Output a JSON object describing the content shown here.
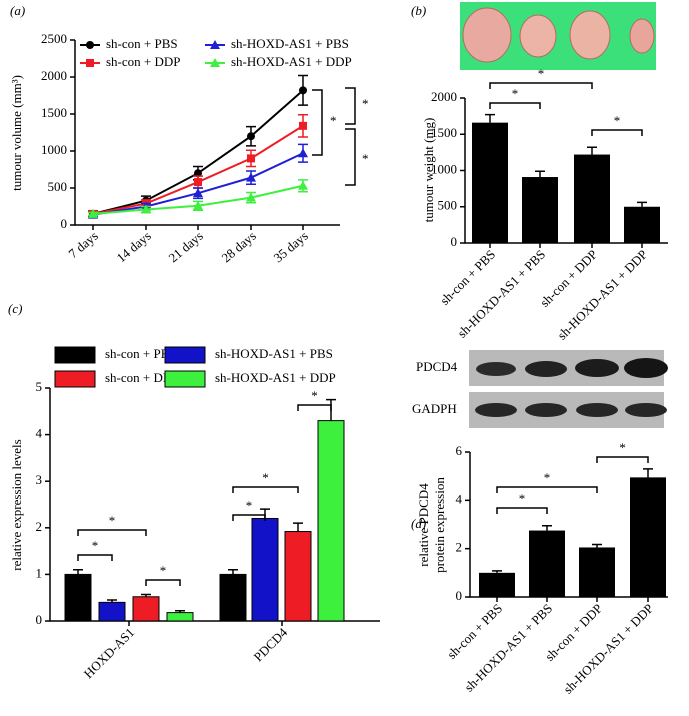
{
  "chart_data": [
    {
      "type": "line",
      "panel_label": "(a)",
      "y_label": "tumour volume (mm³)",
      "categories": [
        "7 days",
        "14 days",
        "21 days",
        "28 days",
        "35 days"
      ],
      "ylim": [
        0,
        2500
      ],
      "yticks": [
        0,
        500,
        1000,
        1500,
        2000,
        2500
      ],
      "series": [
        {
          "name": "sh-con + PBS",
          "color": "#000000",
          "marker": "circle",
          "values": [
            150,
            330,
            700,
            1200,
            1820
          ],
          "errors": [
            40,
            60,
            90,
            130,
            200
          ]
        },
        {
          "name": "sh-con + DDP",
          "color": "#ee1c24",
          "marker": "square",
          "values": [
            150,
            290,
            580,
            900,
            1340
          ],
          "errors": [
            30,
            50,
            80,
            110,
            150
          ]
        },
        {
          "name": "sh-HOXD-AS1 + PBS",
          "color": "#1f1fd6",
          "marker": "triangle",
          "values": [
            140,
            250,
            430,
            640,
            970
          ],
          "errors": [
            30,
            40,
            70,
            90,
            120
          ]
        },
        {
          "name": "sh-HOXD-AS1 + DDP",
          "color": "#3ef03e",
          "marker": "triangle",
          "values": [
            150,
            210,
            260,
            370,
            530
          ],
          "errors": [
            20,
            40,
            60,
            70,
            80
          ]
        }
      ],
      "annotations": [
        "*",
        "*",
        "*"
      ]
    },
    {
      "type": "bar",
      "panel_label": "(b)",
      "y_label": "tumour weight (mg)",
      "categories": [
        "sh-con + PBS",
        "sh-HOXD-AS1 + PBS",
        "sh-con + DDP",
        "sh-HOXD-AS1 + DDP"
      ],
      "values": [
        1660,
        910,
        1220,
        500
      ],
      "errors": [
        110,
        80,
        100,
        60
      ],
      "color": "#000000",
      "ylim": [
        0,
        2000
      ],
      "yticks": [
        0,
        500,
        1000,
        1500,
        2000
      ],
      "annotations": [
        "*",
        "*",
        "*"
      ]
    },
    {
      "type": "grouped_bar",
      "panel_label": "(c)",
      "y_label": "relative expression levels",
      "categories": [
        "HOXD-AS1",
        "PDCD4"
      ],
      "ylim": [
        0,
        5
      ],
      "yticks": [
        0,
        1,
        2,
        3,
        4,
        5
      ],
      "series": [
        {
          "name": "sh-con + PBS",
          "color": "#000000",
          "values": [
            1.0,
            1.0
          ],
          "errors": [
            0.1,
            0.1
          ]
        },
        {
          "name": "sh-HOXD-AS1 + PBS",
          "color": "#1212c8",
          "values": [
            0.4,
            2.2
          ],
          "errors": [
            0.05,
            0.2
          ]
        },
        {
          "name": "sh-con + DDP",
          "color": "#ee1c24",
          "values": [
            0.52,
            1.92
          ],
          "errors": [
            0.05,
            0.18
          ]
        },
        {
          "name": "sh-HOXD-AS1 + DDP",
          "color": "#3ef03e",
          "values": [
            0.18,
            4.3
          ],
          "errors": [
            0.04,
            0.45
          ]
        }
      ],
      "annotations": [
        "*",
        "*",
        "*",
        "*",
        "*",
        "*"
      ]
    },
    {
      "type": "bar",
      "panel_label": "(d)",
      "y_label": [
        "relative PDCD4",
        "protein expression"
      ],
      "blot_labels": [
        "PDCD4",
        "GADPH"
      ],
      "categories": [
        "sh-con + PBS",
        "sh-HOXD-AS1 + PBS",
        "sh-con + DDP",
        "sh-HOXD-AS1 + DDP"
      ],
      "values": [
        1.0,
        2.75,
        2.05,
        4.95
      ],
      "errors": [
        0.08,
        0.2,
        0.12,
        0.35
      ],
      "color": "#000000",
      "ylim": [
        0,
        6
      ],
      "yticks": [
        0,
        2,
        4,
        6
      ],
      "annotations": [
        "*",
        "*",
        "*"
      ]
    }
  ]
}
